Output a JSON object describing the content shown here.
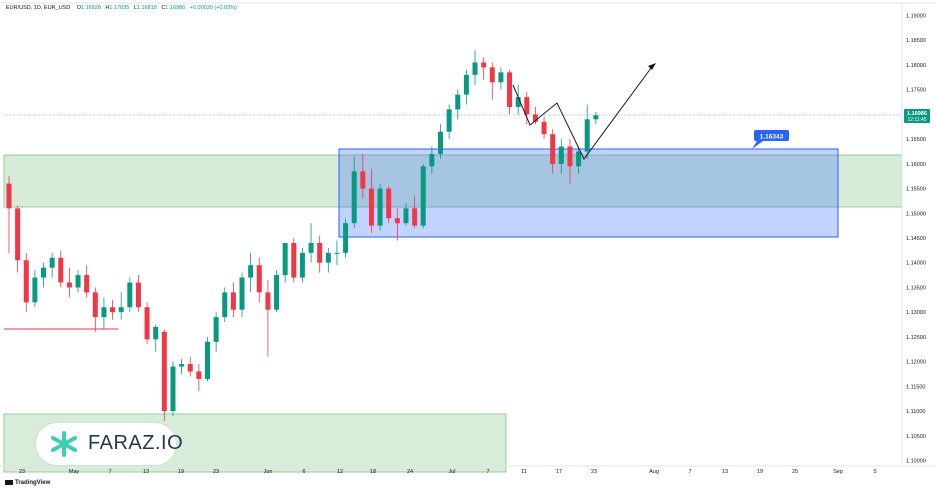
{
  "header": {
    "symbol": "EUR/USD, 1D, EUR_USD",
    "open_label": "O",
    "open": "1.16928",
    "high_label": "H",
    "high": "1.17035",
    "low_label": "L",
    "low": "1.16818",
    "close_label": "C",
    "close": "1.16986",
    "change": "+0.00030 (+0.03%)"
  },
  "brand": {
    "logo_text": "FARAZ.IO",
    "platform": "TradingView"
  },
  "colors": {
    "up": "#089981",
    "down": "#f23645",
    "zone_green": "#c8e6c9",
    "zone_blue": "#2962ff"
  },
  "chart_data": {
    "type": "candlestick",
    "yaxis_ticks": [
      "1.19000",
      "1.18500",
      "1.18000",
      "1.17500",
      "1.17000",
      "1.16500",
      "1.16000",
      "1.15500",
      "1.15000",
      "1.14500",
      "1.14000",
      "1.13500",
      "1.13000",
      "1.12500",
      "1.12000",
      "1.11500",
      "1.11000",
      "1.10500",
      "1.10000"
    ],
    "ylim": [
      1.0985,
      1.1925
    ],
    "xaxis_ticks": [
      "23",
      "May",
      "7",
      "13",
      "19",
      "23",
      "Jun",
      "6",
      "12",
      "18",
      "24",
      "Jul",
      "7",
      "11",
      "17",
      "23",
      "Aug",
      "7",
      "13",
      "19",
      "25",
      "Sep",
      "5"
    ],
    "current_price": "1.16986",
    "countdown": "12:11:45",
    "price_label": "1.16343",
    "candles": [
      [
        1.156,
        1.1575,
        1.142,
        1.151
      ],
      [
        1.151,
        1.1515,
        1.138,
        1.1405
      ],
      [
        1.1405,
        1.142,
        1.13,
        1.132
      ],
      [
        1.132,
        1.1385,
        1.131,
        1.137
      ],
      [
        1.137,
        1.14,
        1.135,
        1.139
      ],
      [
        1.139,
        1.142,
        1.137,
        1.141
      ],
      [
        1.141,
        1.1425,
        1.135,
        1.136
      ],
      [
        1.136,
        1.139,
        1.133,
        1.135
      ],
      [
        1.135,
        1.1385,
        1.134,
        1.1375
      ],
      [
        1.1375,
        1.1395,
        1.133,
        1.134
      ],
      [
        1.134,
        1.135,
        1.126,
        1.129
      ],
      [
        1.129,
        1.133,
        1.1265,
        1.131
      ],
      [
        1.131,
        1.1325,
        1.1285,
        1.13
      ],
      [
        1.13,
        1.134,
        1.1285,
        1.131
      ],
      [
        1.131,
        1.137,
        1.13,
        1.136
      ],
      [
        1.136,
        1.1375,
        1.13,
        1.131
      ],
      [
        1.131,
        1.132,
        1.1235,
        1.1245
      ],
      [
        1.1245,
        1.1275,
        1.122,
        1.127
      ],
      [
        1.126,
        1.1265,
        1.108,
        1.11
      ],
      [
        1.11,
        1.12,
        1.109,
        1.119
      ],
      [
        1.119,
        1.1205,
        1.1175,
        1.1195
      ],
      [
        1.1195,
        1.121,
        1.117,
        1.118
      ],
      [
        1.118,
        1.1195,
        1.114,
        1.1165
      ],
      [
        1.1165,
        1.125,
        1.116,
        1.124
      ],
      [
        1.124,
        1.13,
        1.122,
        1.129
      ],
      [
        1.129,
        1.135,
        1.128,
        1.134
      ],
      [
        1.134,
        1.136,
        1.129,
        1.1305
      ],
      [
        1.1305,
        1.138,
        1.129,
        1.137
      ],
      [
        1.137,
        1.142,
        1.134,
        1.1395
      ],
      [
        1.1395,
        1.141,
        1.132,
        1.134
      ],
      [
        1.134,
        1.1365,
        1.121,
        1.1305
      ],
      [
        1.1305,
        1.1385,
        1.13,
        1.1375
      ],
      [
        1.1375,
        1.144,
        1.136,
        1.144
      ],
      [
        1.144,
        1.145,
        1.136,
        1.137
      ],
      [
        1.137,
        1.143,
        1.136,
        1.142
      ],
      [
        1.142,
        1.148,
        1.14,
        1.144
      ],
      [
        1.144,
        1.1455,
        1.138,
        1.14
      ],
      [
        1.14,
        1.143,
        1.138,
        1.142
      ],
      [
        1.142,
        1.1445,
        1.1395,
        1.142
      ],
      [
        1.142,
        1.149,
        1.141,
        1.148
      ],
      [
        1.148,
        1.1615,
        1.147,
        1.1585
      ],
      [
        1.1585,
        1.162,
        1.153,
        1.155
      ],
      [
        1.155,
        1.159,
        1.146,
        1.1475
      ],
      [
        1.1475,
        1.156,
        1.1465,
        1.155
      ],
      [
        1.155,
        1.1555,
        1.148,
        1.149
      ],
      [
        1.149,
        1.151,
        1.1445,
        1.148
      ],
      [
        1.148,
        1.152,
        1.1475,
        1.151
      ],
      [
        1.151,
        1.1535,
        1.147,
        1.1475
      ],
      [
        1.1475,
        1.16,
        1.147,
        1.1595
      ],
      [
        1.1595,
        1.1635,
        1.158,
        1.162
      ],
      [
        1.162,
        1.168,
        1.161,
        1.1665
      ],
      [
        1.1665,
        1.172,
        1.165,
        1.171
      ],
      [
        1.171,
        1.175,
        1.169,
        1.174
      ],
      [
        1.174,
        1.179,
        1.172,
        1.178
      ],
      [
        1.178,
        1.183,
        1.176,
        1.1805
      ],
      [
        1.1805,
        1.1815,
        1.177,
        1.1795
      ],
      [
        1.1795,
        1.1805,
        1.173,
        1.1765
      ],
      [
        1.1765,
        1.1795,
        1.175,
        1.1785
      ],
      [
        1.1785,
        1.179,
        1.17,
        1.1715
      ],
      [
        1.1715,
        1.176,
        1.17,
        1.1735
      ],
      [
        1.1735,
        1.1745,
        1.168,
        1.17
      ],
      [
        1.17,
        1.1715,
        1.168,
        1.1685
      ],
      [
        1.1685,
        1.1695,
        1.165,
        1.166
      ],
      [
        1.166,
        1.167,
        1.158,
        1.16
      ],
      [
        1.16,
        1.165,
        1.158,
        1.1635
      ],
      [
        1.1635,
        1.165,
        1.156,
        1.1595
      ],
      [
        1.1595,
        1.1635,
        1.158,
        1.1625
      ],
      [
        1.1625,
        1.172,
        1.161,
        1.169
      ],
      [
        1.169,
        1.1705,
        1.168,
        1.1698
      ]
    ]
  }
}
